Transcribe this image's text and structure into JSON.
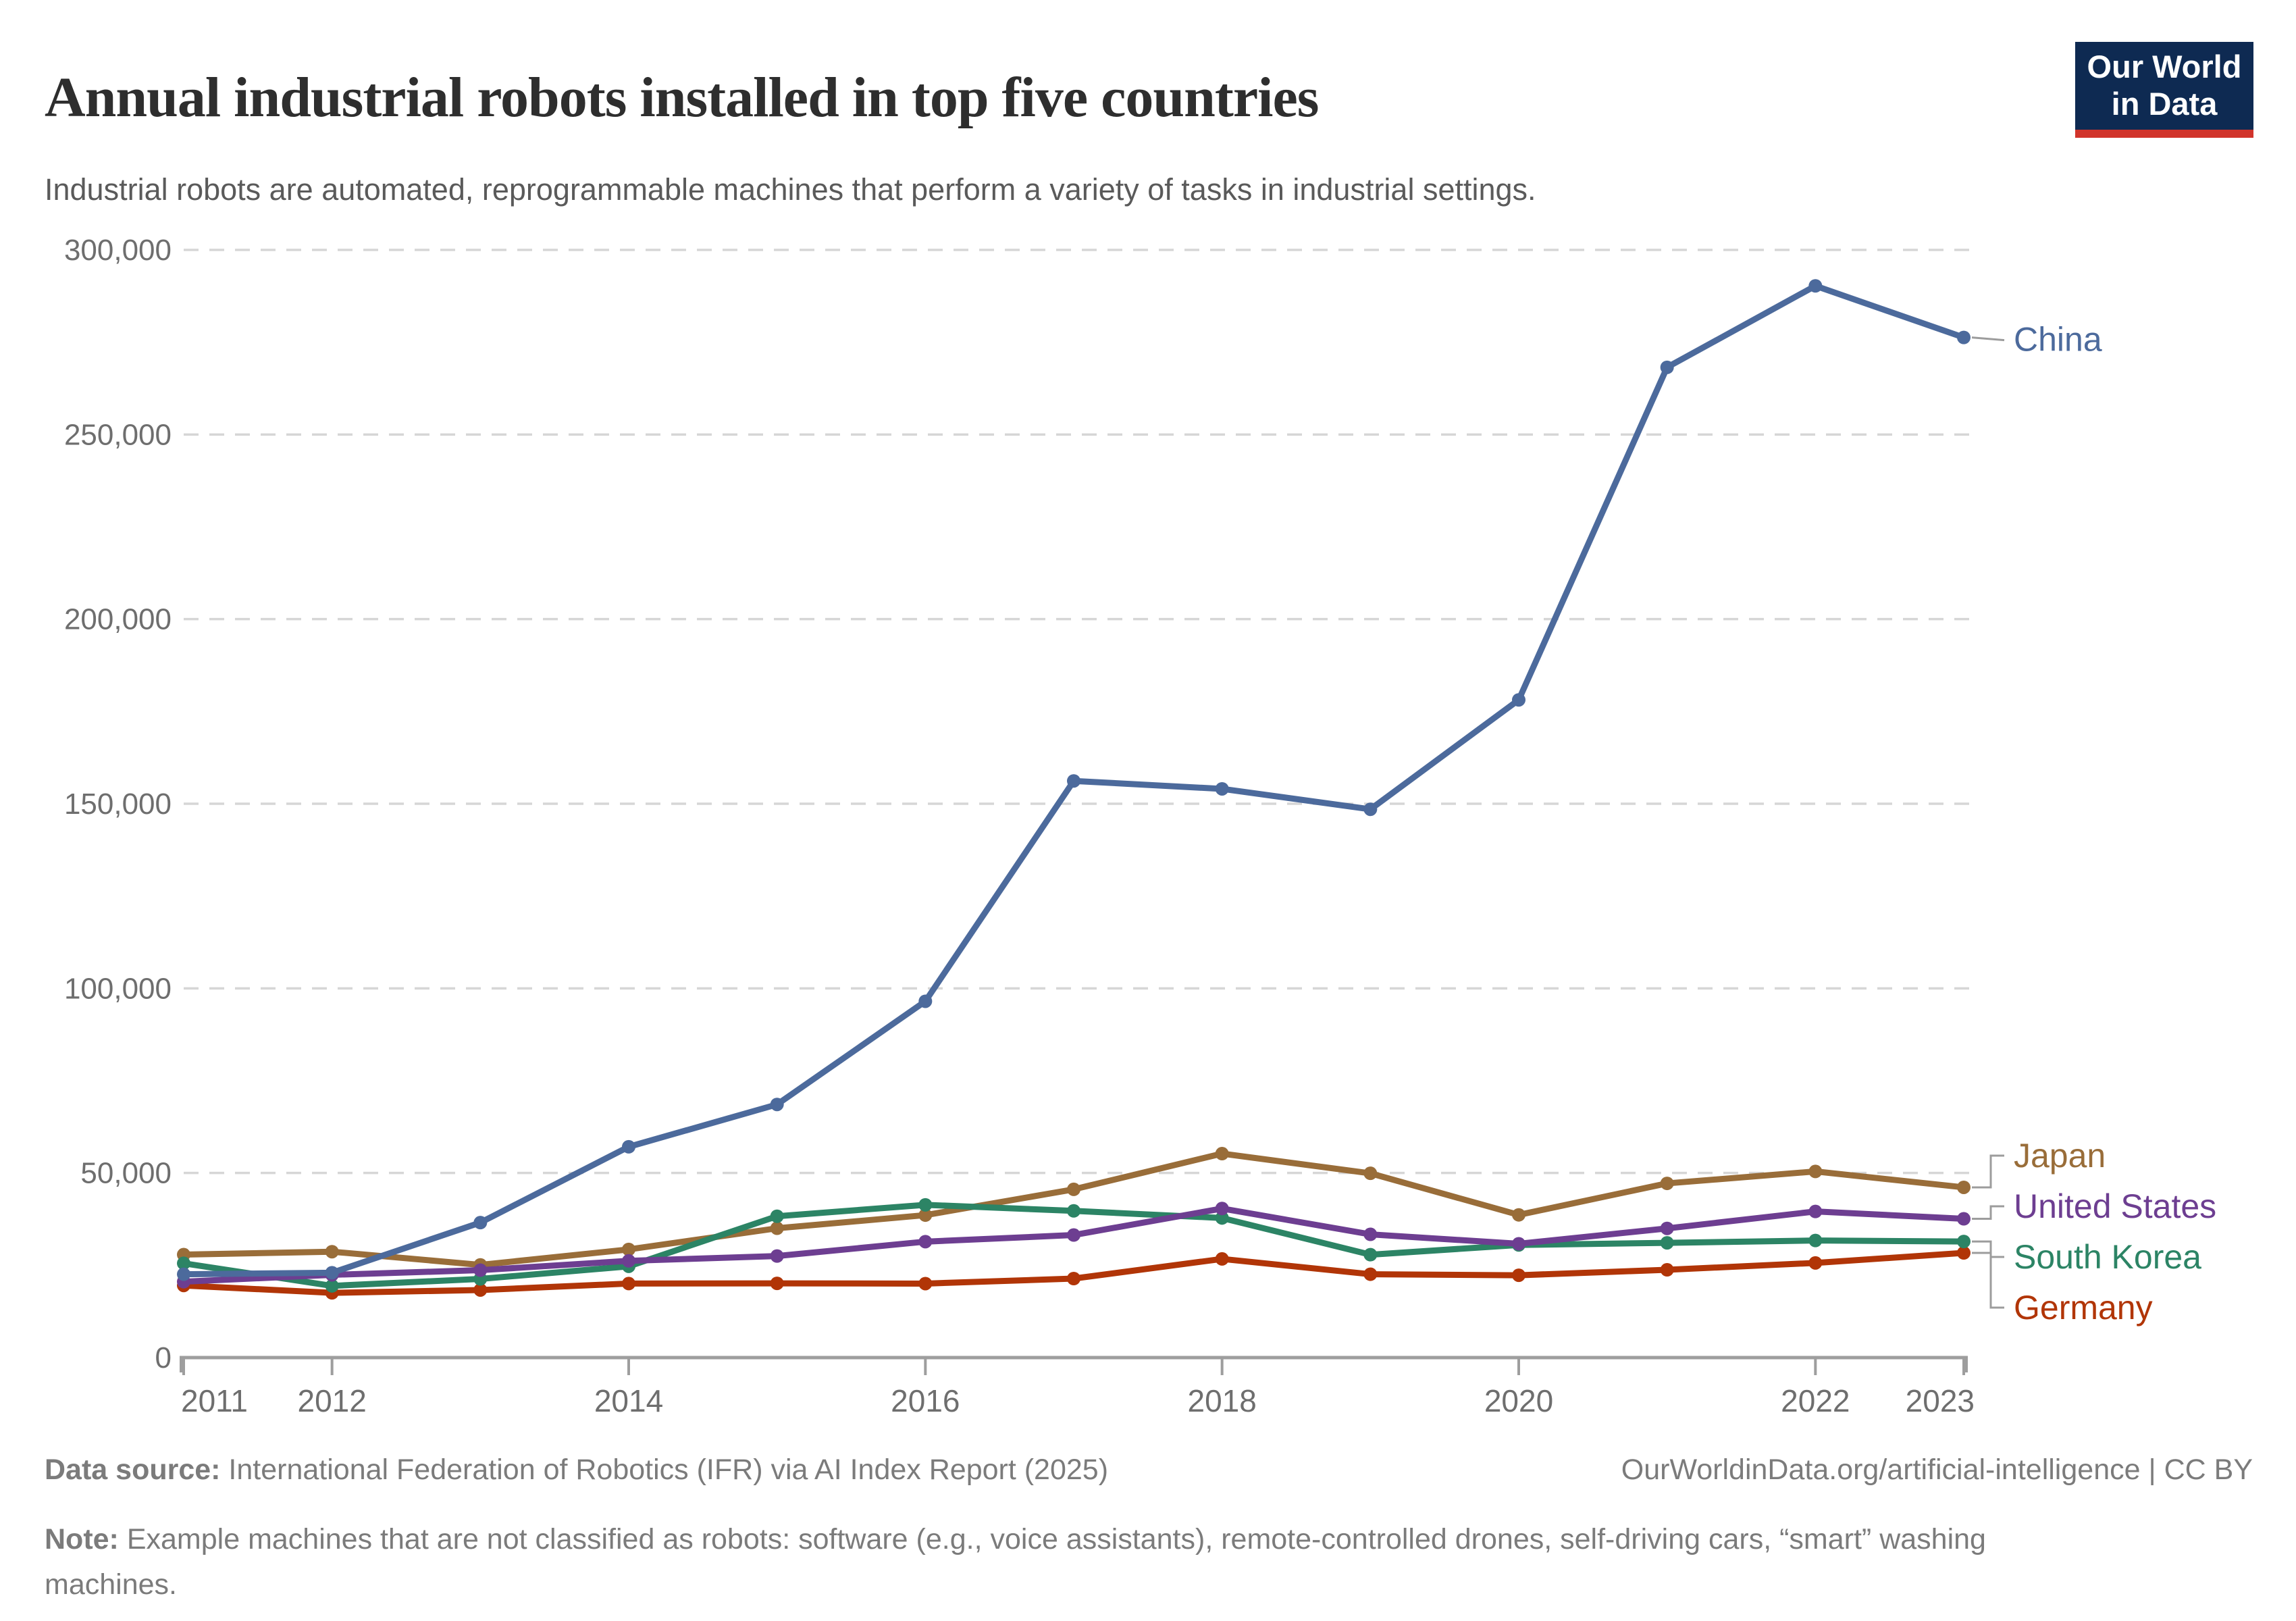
{
  "header": {
    "title": "Annual industrial robots installed in top five countries",
    "subtitle": "Industrial robots are automated, reprogrammable machines that perform a variety of tasks in industrial settings.",
    "logo": {
      "line1": "Our World",
      "line2": "in Data"
    }
  },
  "chart_data": {
    "type": "line",
    "x": [
      2011,
      2012,
      2013,
      2014,
      2015,
      2016,
      2017,
      2018,
      2019,
      2020,
      2021,
      2022,
      2023
    ],
    "series": [
      {
        "name": "China",
        "color": "#4C6A9C",
        "values": [
          22577,
          22987,
          36560,
          57096,
          68556,
          96500,
          156176,
          154032,
          148500,
          178132,
          268195,
          290258,
          276288
        ]
      },
      {
        "name": "Japan",
        "color": "#996D39",
        "values": [
          27894,
          28680,
          25110,
          29297,
          35023,
          38586,
          45566,
          55240,
          49908,
          38653,
          47182,
          50413,
          46106
        ]
      },
      {
        "name": "United States",
        "color": "#6D3E91",
        "values": [
          20555,
          22414,
          23679,
          26202,
          27504,
          31404,
          33192,
          40373,
          33378,
          30826,
          34987,
          39576,
          37587
        ]
      },
      {
        "name": "South Korea",
        "color": "#2C8465",
        "values": [
          25536,
          19424,
          21307,
          24721,
          38285,
          41373,
          39732,
          37807,
          27873,
          30506,
          31083,
          31716,
          31444
        ]
      },
      {
        "name": "Germany",
        "color": "#B13507",
        "values": [
          19533,
          17528,
          18297,
          20051,
          20105,
          20039,
          21404,
          26723,
          22578,
          22302,
          23777,
          25636,
          28355
        ]
      }
    ],
    "title": "Annual industrial robots installed in top five countries",
    "xlabel": "",
    "ylabel": "",
    "ylim": [
      0,
      300000
    ],
    "grid": "horizontal-dashed",
    "legend_position": "right-of-line-ends",
    "y_ticks": [
      {
        "value": 0,
        "label": "0"
      },
      {
        "value": 50000,
        "label": "50,000"
      },
      {
        "value": 100000,
        "label": "100,000"
      },
      {
        "value": 150000,
        "label": "150,000"
      },
      {
        "value": 200000,
        "label": "200,000"
      },
      {
        "value": 250000,
        "label": "250,000"
      },
      {
        "value": 300000,
        "label": "300,000"
      }
    ],
    "x_tick_labels": [
      "2011",
      "2012",
      "2014",
      "2016",
      "2018",
      "2020",
      "2022",
      "2023"
    ]
  },
  "footer": {
    "source_label": "Data source:",
    "source_text": " International Federation of Robotics (IFR) via AI Index Report (2025)",
    "attribution": "OurWorldinData.org/artificial-intelligence | CC BY",
    "note_label": "Note:",
    "note_text": " Example machines that are not classified as robots: software (e.g., voice assistants), remote-controlled drones, self-driving cars, “smart” washing machines."
  },
  "palette": {
    "logo_bg": "#0E2A52",
    "logo_accent": "#D1342B",
    "grid": "#D6D6D6",
    "axis": "#9E9E9E",
    "tick_text": "#6E6E6E",
    "connector": "#9C9C9C",
    "title_text": "#2E2E2E",
    "subtitle_text": "#5A5A5A",
    "footer_text": "#7B7B7B"
  }
}
